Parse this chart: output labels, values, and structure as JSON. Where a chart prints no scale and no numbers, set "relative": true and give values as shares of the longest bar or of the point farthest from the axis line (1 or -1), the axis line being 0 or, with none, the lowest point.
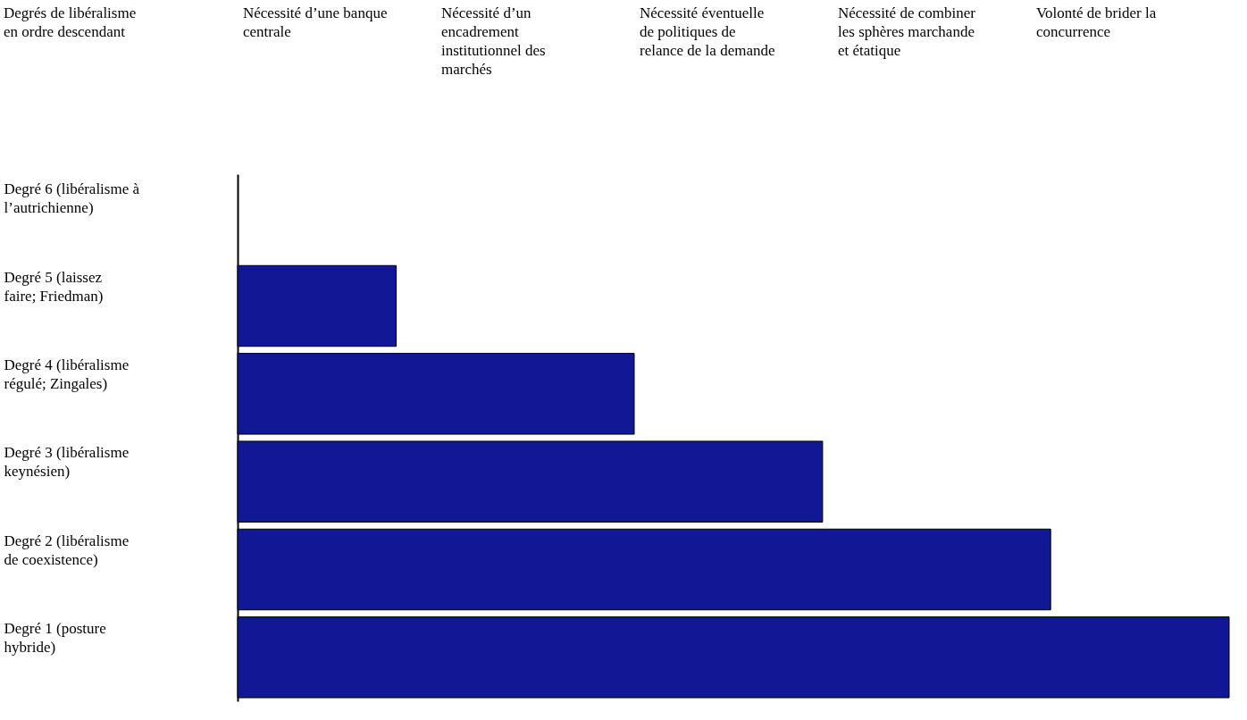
{
  "chart_data": {
    "type": "bar",
    "orientation": "horizontal",
    "relative": true,
    "categories": [
      "Degré 6 (libéralisme à l’autrichienne)",
      "Degré 5 (laissez faire; Friedman)",
      "Degré 4 (libéralisme régulé; Zingales)",
      "Degré 3 (libéralisme keynésien)",
      "Degré 2 (libéralisme de coexistence)",
      "Degré 1 (posture hybride)"
    ],
    "values": [
      null,
      0.16,
      0.4,
      0.59,
      0.82,
      1
    ],
    "color": "#101896",
    "annotations": [
      "Degrés de libéralisme en ordre descendant",
      "Nécessité d’une banque centrale",
      "Nécessité d’un encadrement institutionnel des marchés",
      "Nécessité éventuelle de politiques de relance de la demande",
      "Nécessité de combiner les sphères marchande et étatique",
      "Volonté de brider la concurrence"
    ]
  }
}
